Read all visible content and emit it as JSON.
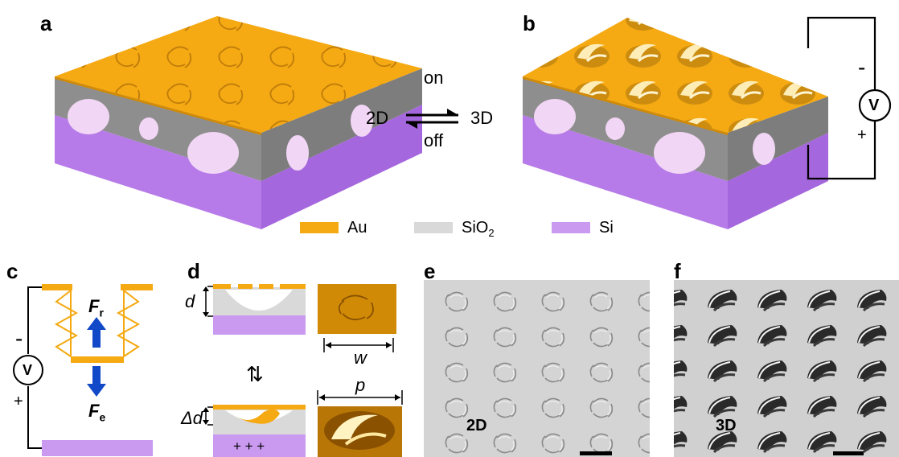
{
  "panels": {
    "a": "a",
    "b": "b",
    "c": "c",
    "d": "d",
    "e": "e",
    "f": "f"
  },
  "switch": {
    "left": "2D",
    "right": "3D",
    "top": "on",
    "bottom": "off"
  },
  "legend": [
    {
      "label": "Au",
      "color": "#f5a912"
    },
    {
      "label": "SiO",
      "sub": "2",
      "color": "#d9d9d9"
    },
    {
      "label": "Si",
      "color": "#c99af0"
    }
  ],
  "circuit_b": {
    "minus": "-",
    "meter": "V",
    "plus": "+"
  },
  "panel_c": {
    "minus": "-",
    "meter": "V",
    "plus": "+",
    "fr_main": "F",
    "fr_sub": "r",
    "fe_main": "F",
    "fe_sub": "e"
  },
  "panel_d": {
    "d_label": "d",
    "delta_d_label": "Δd",
    "w_label": "w",
    "p_label": "p",
    "charges": "+ + +",
    "swap": "⇅"
  },
  "sem": {
    "e_label": "2D",
    "f_label": "3D"
  },
  "colors": {
    "gold": "#f5a912",
    "gray": "#9a9a9a",
    "light_gray": "#d9d9d9",
    "purple": "#b77ae6",
    "pink": "#f2d6f5",
    "blue": "#1249c8"
  }
}
